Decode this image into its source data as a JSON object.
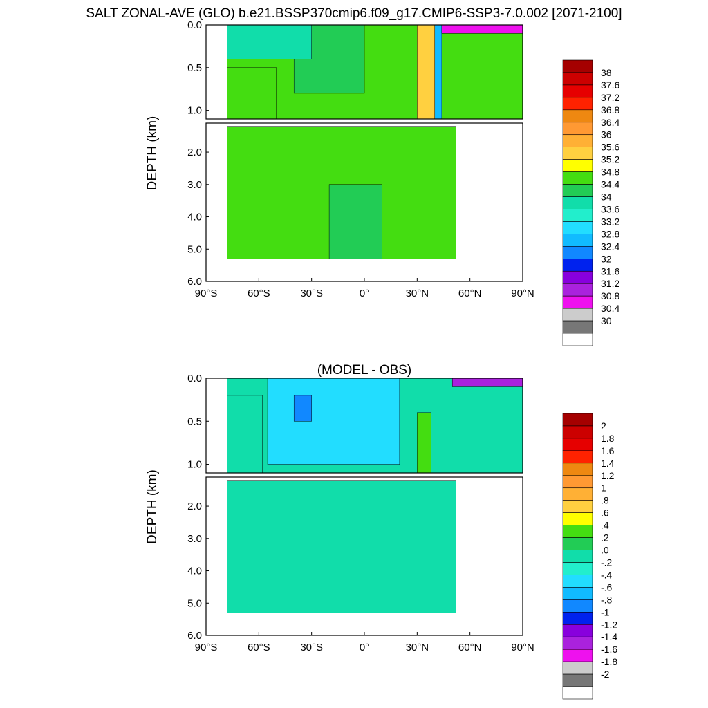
{
  "figure": {
    "title": "SALT ZONAL-AVE (GLO) b.e21.BSSP370cmip6.f09_g17.CMIP6-SSP3-7.0.002 [2071-2100]"
  },
  "chart_data": [
    {
      "type": "heatmap",
      "title": "SALT ZONAL-AVE (GLO) b.e21.BSSP370cmip6.f09_g17.CMIP6-SSP3-7.0.002 [2071-2100]",
      "xlabel": "",
      "ylabel": "DEPTH (km)",
      "xlim": [
        -90,
        90
      ],
      "x_ticks": [
        -90,
        -60,
        -30,
        0,
        30,
        60,
        90
      ],
      "x_tick_labels": [
        "90°S",
        "60°S",
        "30°S",
        "0°",
        "30°N",
        "60°N",
        "90°N"
      ],
      "ylim": [
        0,
        6
      ],
      "y_ticks_upper": [
        0,
        0.5,
        1.0
      ],
      "y_tick_labels_upper": [
        "0.0",
        "0.5",
        "1.0"
      ],
      "y_ticks_lower": [
        2,
        3,
        4,
        5,
        6
      ],
      "y_tick_labels_lower": [
        "2.0",
        "3.0",
        "4.0",
        "5.0",
        "6.0"
      ],
      "colorbar": {
        "labels": [
          "38",
          "37.6",
          "37.2",
          "36.8",
          "36.4",
          "36",
          "35.6",
          "35.2",
          "34.8",
          "34.4",
          "34",
          "33.6",
          "33.2",
          "32.8",
          "32.4",
          "32",
          "31.6",
          "31.2",
          "30.8",
          "30.4",
          "30"
        ],
        "colors": [
          "#a50000",
          "#cc0000",
          "#e60000",
          "#ff2200",
          "#ee8811",
          "#ff9933",
          "#ffb035",
          "#ffd040",
          "#ffff00",
          "#44dd11",
          "#22cc55",
          "#11ddaa",
          "#22eecc",
          "#22ddff",
          "#11bbff",
          "#1188ff",
          "#0022ee",
          "#8800dd",
          "#aa22dd",
          "#ee11ee",
          "#cccccc",
          "#777777",
          "#ffffff"
        ]
      },
      "regions": [
        {
          "lat": [
            -78,
            -50
          ],
          "depth": [
            0.5,
            1.1
          ],
          "value": 34.8
        },
        {
          "lat": [
            -78,
            52
          ],
          "depth": [
            1.2,
            5.3
          ],
          "value": 34.8
        },
        {
          "lat": [
            -20,
            10
          ],
          "depth": [
            3.0,
            5.3
          ],
          "value": 34.6
        },
        {
          "lat": [
            -40,
            0
          ],
          "depth": [
            0,
            0.8
          ],
          "value": 34.6
        },
        {
          "lat": [
            -78,
            -30
          ],
          "depth": [
            0,
            0.4
          ],
          "value": 34.2
        },
        {
          "lat": [
            30,
            40
          ],
          "depth": [
            0,
            1.1
          ],
          "value": 35.8
        },
        {
          "lat": [
            40,
            44
          ],
          "depth": [
            0,
            1.1
          ],
          "value": 33.0
        },
        {
          "lat": [
            44,
            90
          ],
          "depth": [
            0,
            0.1
          ],
          "value": 31.0
        }
      ]
    },
    {
      "type": "heatmap",
      "title": "(MODEL - OBS)",
      "xlabel": "",
      "ylabel": "DEPTH (km)",
      "xlim": [
        -90,
        90
      ],
      "x_ticks": [
        -90,
        -60,
        -30,
        0,
        30,
        60,
        90
      ],
      "x_tick_labels": [
        "90°S",
        "60°S",
        "30°S",
        "0°",
        "30°N",
        "60°N",
        "90°N"
      ],
      "ylim": [
        0,
        6
      ],
      "y_ticks_upper": [
        0,
        0.5,
        1.0
      ],
      "y_tick_labels_upper": [
        "0.0",
        "0.5",
        "1.0"
      ],
      "y_ticks_lower": [
        2,
        3,
        4,
        5,
        6
      ],
      "y_tick_labels_lower": [
        "2.0",
        "3.0",
        "4.0",
        "5.0",
        "6.0"
      ],
      "colorbar": {
        "labels": [
          "2",
          "1.8",
          "1.6",
          "1.4",
          "1.2",
          "1",
          ".8",
          ".6",
          ".4",
          ".2",
          ".0",
          "-.2",
          "-.4",
          "-.6",
          "-.8",
          "-1",
          "-1.2",
          "-1.4",
          "-1.6",
          "-1.8",
          "-2"
        ],
        "colors": [
          "#a50000",
          "#cc0000",
          "#e60000",
          "#ff2200",
          "#ee8811",
          "#ff9933",
          "#ffb035",
          "#ffd040",
          "#ffff00",
          "#44dd11",
          "#22cc55",
          "#11ddaa",
          "#22eecc",
          "#22ddff",
          "#11bbff",
          "#1188ff",
          "#0022ee",
          "#8800dd",
          "#aa22dd",
          "#ee11ee",
          "#cccccc",
          "#777777",
          "#ffffff"
        ]
      },
      "regions": [
        {
          "lat": [
            -78,
            52
          ],
          "depth": [
            1.2,
            5.3
          ],
          "value": 0.1
        },
        {
          "lat": [
            -78,
            -58
          ],
          "depth": [
            0.2,
            1.1
          ],
          "value": 0.1
        },
        {
          "lat": [
            -55,
            20
          ],
          "depth": [
            0,
            1.0
          ],
          "value": -0.3
        },
        {
          "lat": [
            -40,
            -30
          ],
          "depth": [
            0.2,
            0.5
          ],
          "value": -0.7
        },
        {
          "lat": [
            30,
            38
          ],
          "depth": [
            0.4,
            1.1
          ],
          "value": 0.5
        },
        {
          "lat": [
            50,
            90
          ],
          "depth": [
            0,
            0.1
          ],
          "value": -1.4
        }
      ]
    }
  ]
}
